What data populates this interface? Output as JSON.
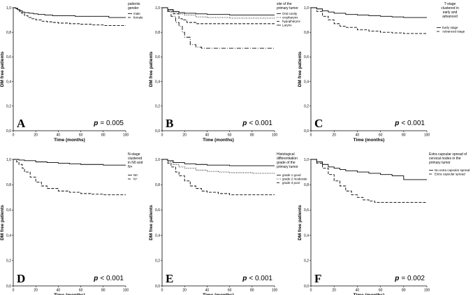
{
  "colors": {
    "ink": "#000000",
    "background": "#ffffff"
  },
  "chart_data": [
    {
      "type": "line",
      "panel": "A",
      "xlabel": "Time (months)",
      "ylabel": "DM free patients",
      "xlim": [
        0,
        100
      ],
      "ylim": [
        0,
        1.0
      ],
      "xticks": [
        "0",
        "20",
        "40",
        "60",
        "80",
        "100"
      ],
      "yticks": [
        "0,0",
        "0,2",
        "0,4",
        "0,6",
        "0,8",
        "1,0"
      ],
      "legend_title": [
        "patients",
        "gender"
      ],
      "pvalue_prefix": "p",
      "pvalue_rest": "= 0.005",
      "series": [
        {
          "name": "male",
          "dash": "",
          "x": [
            0,
            2,
            4,
            6,
            8,
            10,
            14,
            18,
            22,
            28,
            35,
            45,
            55,
            65,
            75,
            85,
            100
          ],
          "y": [
            1.0,
            0.995,
            0.985,
            0.975,
            0.965,
            0.96,
            0.955,
            0.95,
            0.945,
            0.94,
            0.935,
            0.935,
            0.93,
            0.93,
            0.93,
            0.92,
            0.92
          ]
        },
        {
          "name": "female",
          "dash": "4,2",
          "x": [
            0,
            2,
            4,
            6,
            8,
            10,
            13,
            16,
            20,
            25,
            30,
            35,
            40,
            50,
            60,
            70,
            80,
            100
          ],
          "y": [
            1.0,
            0.99,
            0.975,
            0.96,
            0.95,
            0.935,
            0.92,
            0.91,
            0.9,
            0.89,
            0.885,
            0.88,
            0.875,
            0.87,
            0.865,
            0.86,
            0.855,
            0.855
          ]
        }
      ]
    },
    {
      "type": "line",
      "panel": "B",
      "xlabel": "Time (months)",
      "ylabel": "DM free patients",
      "xlim": [
        0,
        100
      ],
      "ylim": [
        0,
        1.0
      ],
      "xticks": [
        "0",
        "20",
        "40",
        "60",
        "80",
        "100"
      ],
      "yticks": [
        "0,0",
        "0,2",
        "0,4",
        "0,6",
        "0,8",
        "1,0"
      ],
      "legend_title": [
        "site of the",
        "primary tumor"
      ],
      "pvalue_prefix": "p",
      "pvalue_rest": "< 0.001",
      "series": [
        {
          "name": "Oral cavity",
          "dash": "",
          "x": [
            0,
            5,
            10,
            15,
            20,
            30,
            40,
            60,
            80,
            100
          ],
          "y": [
            1.0,
            0.985,
            0.97,
            0.96,
            0.955,
            0.95,
            0.945,
            0.94,
            0.94,
            0.94
          ]
        },
        {
          "name": "oropharynx",
          "dash": "1,1.5",
          "x": [
            0,
            5,
            10,
            15,
            20,
            30,
            40,
            60,
            100
          ],
          "y": [
            1.0,
            0.98,
            0.96,
            0.95,
            0.94,
            0.925,
            0.92,
            0.915,
            0.915
          ]
        },
        {
          "name": "hypopharynx",
          "dash": "4,2",
          "x": [
            0,
            5,
            10,
            15,
            18,
            22,
            30,
            40,
            60,
            100
          ],
          "y": [
            1.0,
            0.97,
            0.95,
            0.91,
            0.9,
            0.88,
            0.87,
            0.87,
            0.87,
            0.87
          ]
        },
        {
          "name": "Larynx",
          "dash": "6,2,1,2",
          "x": [
            0,
            5,
            8,
            12,
            15,
            18,
            20,
            25,
            30,
            35,
            40,
            100
          ],
          "y": [
            1.0,
            0.97,
            0.93,
            0.88,
            0.85,
            0.8,
            0.76,
            0.7,
            0.68,
            0.67,
            0.67,
            0.67
          ]
        }
      ]
    },
    {
      "type": "line",
      "panel": "C",
      "xlabel": "Time (months)",
      "ylabel": "DM free patients",
      "xlim": [
        0,
        100
      ],
      "ylim": [
        0,
        1.0
      ],
      "xticks": [
        "0",
        "20",
        "40",
        "60",
        "80",
        "100"
      ],
      "yticks": [
        "0,0",
        "0,2",
        "0,4",
        "0,6",
        "0,8",
        "1,0"
      ],
      "legend_title": [
        "T-stage",
        "clustered in",
        "early and",
        "advanced"
      ],
      "pvalue_prefix": "p",
      "pvalue_rest": "< 0.001",
      "series": [
        {
          "name": "Early stage",
          "dash": "",
          "x": [
            0,
            5,
            10,
            15,
            20,
            30,
            40,
            50,
            60,
            70,
            80,
            100
          ],
          "y": [
            1.0,
            0.99,
            0.975,
            0.965,
            0.955,
            0.945,
            0.94,
            0.935,
            0.93,
            0.925,
            0.92,
            0.92
          ]
        },
        {
          "name": "Advanced stage",
          "dash": "4,2",
          "x": [
            0,
            5,
            10,
            15,
            20,
            25,
            30,
            40,
            50,
            60,
            70,
            80,
            100
          ],
          "y": [
            1.0,
            0.97,
            0.93,
            0.9,
            0.87,
            0.85,
            0.84,
            0.82,
            0.81,
            0.8,
            0.795,
            0.79,
            0.79
          ]
        }
      ]
    },
    {
      "type": "line",
      "panel": "D",
      "xlabel": "Time (months)",
      "ylabel": "DM free patients",
      "xlim": [
        0,
        100
      ],
      "ylim": [
        0,
        1.0
      ],
      "xticks": [
        "0",
        "20",
        "40",
        "60",
        "80",
        "100"
      ],
      "yticks": [
        "0,0",
        "0,2",
        "0,4",
        "0,6",
        "0,8",
        "1,0"
      ],
      "legend_title": [
        "N-stage",
        "clustered",
        "in N0 and",
        "N+"
      ],
      "pvalue_prefix": "p",
      "pvalue_rest": "< 0.001",
      "series": [
        {
          "name": "N0",
          "dash": "",
          "x": [
            0,
            5,
            10,
            20,
            30,
            40,
            50,
            60,
            70,
            80,
            100
          ],
          "y": [
            1.0,
            0.995,
            0.99,
            0.98,
            0.975,
            0.97,
            0.965,
            0.96,
            0.96,
            0.955,
            0.955
          ]
        },
        {
          "name": "N+",
          "dash": "4,2",
          "x": [
            0,
            3,
            5,
            8,
            10,
            15,
            20,
            25,
            30,
            40,
            50,
            60,
            70,
            80,
            100
          ],
          "y": [
            1.0,
            0.98,
            0.96,
            0.93,
            0.9,
            0.86,
            0.82,
            0.79,
            0.77,
            0.75,
            0.74,
            0.73,
            0.725,
            0.72,
            0.72
          ]
        }
      ]
    },
    {
      "type": "line",
      "panel": "E",
      "xlabel": "Time (months)",
      "ylabel": "DM free patients",
      "xlim": [
        0,
        100
      ],
      "ylim": [
        0,
        1.0
      ],
      "xticks": [
        "0",
        "20",
        "40",
        "60",
        "80",
        "100"
      ],
      "yticks": [
        "0,0",
        "0,2",
        "0,4",
        "0,6",
        "0,8",
        "1,0"
      ],
      "legend_title": [
        "Histological",
        "differentiation",
        "grade of the",
        "primary tumor"
      ],
      "pvalue_prefix": "p",
      "pvalue_rest": "< 0.001",
      "series": [
        {
          "name": "grade 1 good",
          "dash": "",
          "x": [
            0,
            5,
            10,
            20,
            30,
            40,
            60,
            80,
            100
          ],
          "y": [
            1.0,
            0.99,
            0.975,
            0.965,
            0.96,
            0.955,
            0.95,
            0.95,
            0.95
          ]
        },
        {
          "name": "grade 2 moderate",
          "dash": "1,1.5",
          "x": [
            0,
            5,
            10,
            15,
            20,
            30,
            40,
            50,
            60,
            80,
            100
          ],
          "y": [
            1.0,
            0.98,
            0.96,
            0.94,
            0.93,
            0.915,
            0.905,
            0.9,
            0.895,
            0.89,
            0.89
          ]
        },
        {
          "name": "grade 3 poor",
          "dash": "4,2",
          "x": [
            0,
            5,
            8,
            12,
            15,
            20,
            25,
            30,
            35,
            40,
            50,
            60,
            80,
            100
          ],
          "y": [
            1.0,
            0.97,
            0.94,
            0.9,
            0.87,
            0.83,
            0.79,
            0.77,
            0.75,
            0.74,
            0.73,
            0.72,
            0.72,
            0.72
          ]
        }
      ]
    },
    {
      "type": "line",
      "panel": "F",
      "xlabel": "Time (months)",
      "ylabel": "DM free patients",
      "xlim": [
        0,
        100
      ],
      "ylim": [
        0,
        1.0
      ],
      "xticks": [
        "0",
        "20",
        "40",
        "60",
        "80",
        "100"
      ],
      "yticks": [
        "0,0",
        "0,2",
        "0,4",
        "0,6",
        "0,8",
        "1,0"
      ],
      "legend_title": [
        "Extra capsular spread of",
        "cervical nodes in the",
        "primary tumor"
      ],
      "pvalue_prefix": "p",
      "pvalue_rest": "= 0.002",
      "series": [
        {
          "name": "No extra capsular spread",
          "dash": "",
          "x": [
            0,
            5,
            10,
            15,
            20,
            25,
            30,
            40,
            50,
            60,
            70,
            80,
            100
          ],
          "y": [
            1.0,
            0.98,
            0.96,
            0.94,
            0.93,
            0.92,
            0.91,
            0.9,
            0.89,
            0.88,
            0.87,
            0.84,
            0.84
          ]
        },
        {
          "name": "Extra capsular spread",
          "dash": "4,2",
          "x": [
            0,
            5,
            10,
            15,
            20,
            25,
            30,
            35,
            40,
            45,
            50,
            55,
            60,
            80,
            100
          ],
          "y": [
            1.0,
            0.97,
            0.93,
            0.88,
            0.83,
            0.79,
            0.75,
            0.72,
            0.7,
            0.68,
            0.67,
            0.66,
            0.66,
            0.66,
            0.66
          ]
        }
      ]
    }
  ]
}
